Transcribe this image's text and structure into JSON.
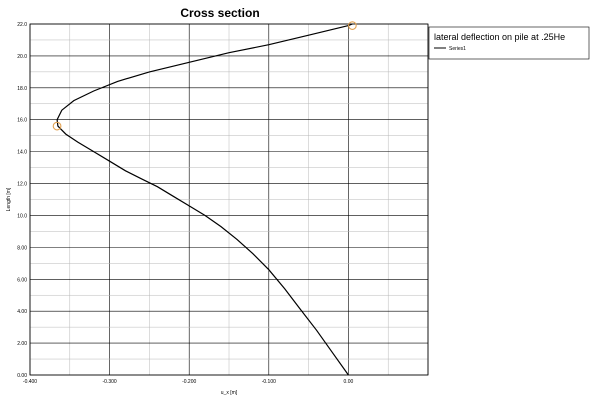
{
  "chart_data": {
    "type": "line",
    "title": "Cross section",
    "xlabel": "u_x [m]",
    "ylabel": "Length [m]",
    "xlim": [
      -0.4,
      0.1
    ],
    "ylim": [
      0,
      22
    ],
    "x_ticks": [
      -0.4,
      -0.3,
      -0.2,
      -0.1,
      0.0
    ],
    "x_tick_labels": [
      "-0.400",
      "-0.300",
      "-0.200",
      "-0.100",
      "0.00"
    ],
    "y_ticks": [
      0,
      2,
      4,
      6,
      8,
      10,
      12,
      14,
      16,
      18,
      20,
      22
    ],
    "y_tick_labels": [
      "0.00",
      "2.00",
      "4.00",
      "6.00",
      "8.00",
      "10.0",
      "12.0",
      "14.0",
      "16.0",
      "18.0",
      "20.0",
      "22.0"
    ],
    "grid": true,
    "legend": {
      "title": "lateral deflection on pile at .25He",
      "placement": "right"
    },
    "series": [
      {
        "name": "Series1",
        "color": "#000000",
        "x": [
          0.0,
          -0.02,
          -0.04,
          -0.06,
          -0.08,
          -0.1,
          -0.12,
          -0.14,
          -0.16,
          -0.18,
          -0.2,
          -0.22,
          -0.24,
          -0.26,
          -0.28,
          -0.3,
          -0.32,
          -0.34,
          -0.355,
          -0.365,
          -0.366,
          -0.36,
          -0.345,
          -0.32,
          -0.29,
          -0.25,
          -0.2,
          -0.15,
          -0.1,
          -0.05,
          0.0,
          0.005
        ],
        "y": [
          0.0,
          1.4,
          2.8,
          4.1,
          5.4,
          6.6,
          7.6,
          8.5,
          9.3,
          10.0,
          10.6,
          11.2,
          11.8,
          12.3,
          12.8,
          13.4,
          14.0,
          14.6,
          15.1,
          15.6,
          16.0,
          16.6,
          17.2,
          17.8,
          18.4,
          19.0,
          19.6,
          20.2,
          20.7,
          21.3,
          21.9,
          22.0
        ]
      }
    ],
    "highlight_points": [
      {
        "x": -0.366,
        "y": 15.6
      },
      {
        "x": 0.005,
        "y": 21.9
      }
    ],
    "marker_color": "#e0a050"
  }
}
